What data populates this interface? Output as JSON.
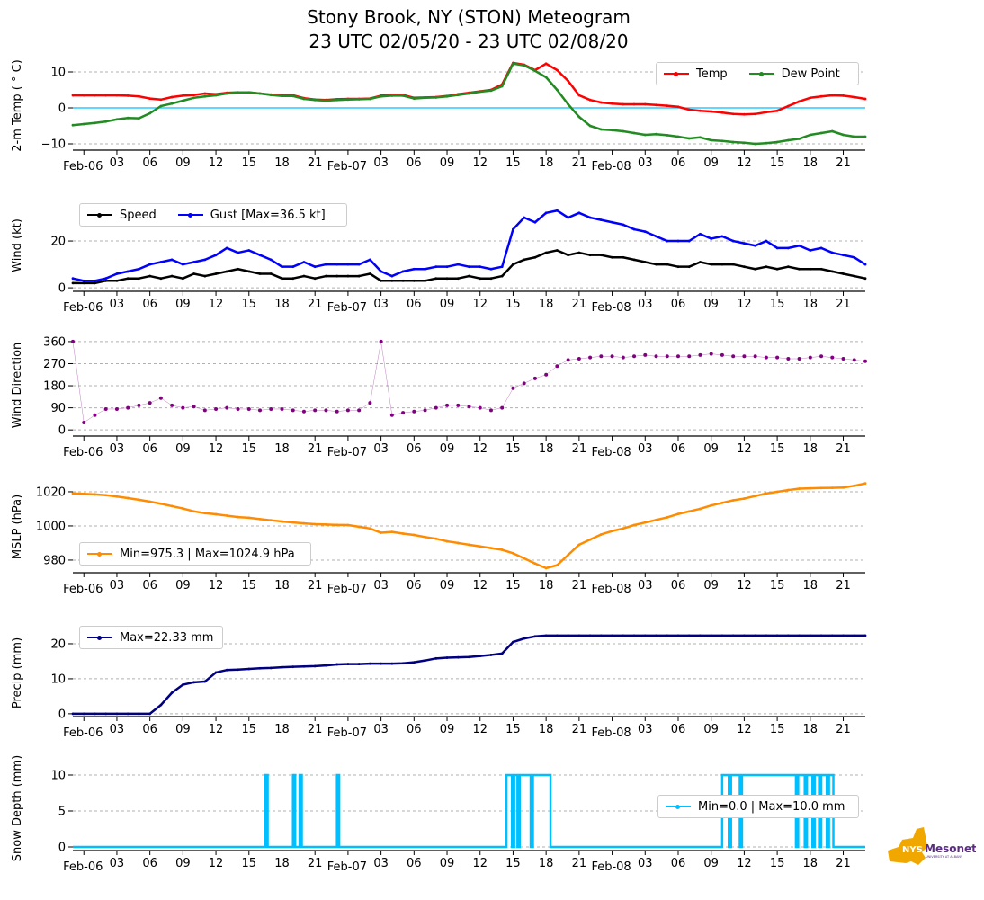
{
  "title": {
    "line1": "Stony Brook, NY (STON) Meteogram",
    "line2": "23 UTC 02/05/20 - 23 UTC 02/08/20"
  },
  "logo": {
    "text": "NYS Mesonet",
    "sub": "UNIVERSITY AT ALBANY"
  },
  "colors": {
    "temp": "#ff0000",
    "dew": "#228b22",
    "speed": "#000000",
    "gust": "#0000ff",
    "dir": "#800080",
    "mslp": "#ff8c00",
    "precip": "#000080",
    "snow": "#00bfff",
    "zero": "#00bfff"
  },
  "chart_data": {
    "type": "line",
    "x_unit": "hours since 23 UTC 02/05/20",
    "xlim": [
      0,
      72
    ],
    "x_ticks": {
      "hours": [
        1,
        4,
        7,
        10,
        13,
        16,
        19,
        22,
        25,
        28,
        31,
        34,
        37,
        40,
        43,
        46,
        49,
        52,
        55,
        58,
        61,
        64,
        67,
        70
      ],
      "labels": [
        "Feb-06",
        "03",
        "06",
        "09",
        "12",
        "15",
        "18",
        "21",
        "Feb-07",
        "03",
        "06",
        "09",
        "12",
        "15",
        "18",
        "21",
        "Feb-08",
        "03",
        "06",
        "09",
        "12",
        "15",
        "18",
        "21"
      ]
    },
    "panels": [
      {
        "ylabel": "2-m Temp ($^\\circ$C)",
        "ylabel_text": "2-m Temp ( ° C)",
        "ylim": [
          -11.75,
          13
        ],
        "yticks": [
          -10,
          0,
          10
        ],
        "ytick_labels": [
          "−10",
          "0",
          "10"
        ],
        "zero_line": true,
        "legend": [
          "Temp",
          "Dew Point"
        ],
        "series": [
          {
            "name": "Temp",
            "color": "#ff0000",
            "values": [
              3.5,
              3.5,
              3.5,
              3.5,
              3.5,
              3.4,
              3.2,
              2.6,
              2.3,
              3.0,
              3.4,
              3.6,
              4.0,
              3.8,
              4.2,
              4.3,
              4.3,
              4.0,
              3.7,
              3.5,
              3.5,
              2.7,
              2.3,
              2.2,
              2.4,
              2.5,
              2.5,
              2.6,
              3.4,
              3.6,
              3.6,
              2.8,
              2.9,
              3.0,
              3.3,
              3.8,
              4.2,
              4.6,
              5.0,
              6.5,
              12.5,
              12.0,
              10.5,
              12.3,
              10.5,
              7.5,
              3.5,
              2.2,
              1.5,
              1.2,
              1.0,
              1.0,
              1.0,
              0.8,
              0.6,
              0.3,
              -0.5,
              -0.8,
              -1.0,
              -1.3,
              -1.7,
              -1.8,
              -1.7,
              -1.2,
              -0.8,
              0.5,
              1.8,
              2.8,
              3.2,
              3.5,
              3.4,
              3.0,
              2.5
            ]
          },
          {
            "name": "Dew Point",
            "color": "#228b22",
            "values": [
              -4.8,
              -4.5,
              -4.2,
              -3.8,
              -3.2,
              -2.8,
              -2.9,
              -1.5,
              0.5,
              1.2,
              2.0,
              2.8,
              3.2,
              3.5,
              4.0,
              4.3,
              4.3,
              4.0,
              3.6,
              3.3,
              3.3,
              2.5,
              2.2,
              2.0,
              2.2,
              2.3,
              2.4,
              2.5,
              3.2,
              3.4,
              3.4,
              2.6,
              2.8,
              2.9,
              3.2,
              3.6,
              4.0,
              4.5,
              4.8,
              6.0,
              12.3,
              11.8,
              10.3,
              8.5,
              5.0,
              1.0,
              -2.5,
              -5.0,
              -6.0,
              -6.2,
              -6.5,
              -7.0,
              -7.5,
              -7.3,
              -7.6,
              -8.0,
              -8.5,
              -8.2,
              -9.0,
              -9.2,
              -9.5,
              -9.7,
              -10.0,
              -9.8,
              -9.5,
              -9.0,
              -8.6,
              -7.5,
              -7.0,
              -6.5,
              -7.5,
              -8.0,
              -8.0
            ]
          }
        ]
      },
      {
        "ylabel_text": "Wind (kt)",
        "ylim": [
          -1.5,
          37.7
        ],
        "yticks": [
          0,
          20
        ],
        "ytick_labels": [
          "0",
          "20"
        ],
        "legend": [
          "Speed",
          "Gust [Max=36.5 kt]"
        ],
        "series": [
          {
            "name": "Speed",
            "color": "#000000",
            "values": [
              2,
              2,
              2,
              3,
              3,
              4,
              4,
              5,
              4,
              5,
              4,
              6,
              5,
              6,
              7,
              8,
              7,
              6,
              6,
              4,
              4,
              5,
              4,
              5,
              5,
              5,
              5,
              6,
              3,
              3,
              3,
              3,
              3,
              4,
              4,
              4,
              5,
              4,
              4,
              5,
              10,
              12,
              13,
              15,
              16,
              14,
              15,
              14,
              14,
              13,
              13,
              12,
              11,
              10,
              10,
              9,
              9,
              11,
              10,
              10,
              10,
              9,
              8,
              9,
              8,
              9,
              8,
              8,
              8,
              7,
              6,
              5,
              4
            ]
          },
          {
            "name": "Gust",
            "color": "#0000ff",
            "values": [
              4,
              3,
              3,
              4,
              6,
              7,
              8,
              10,
              11,
              12,
              10,
              11,
              12,
              14,
              17,
              15,
              16,
              14,
              12,
              9,
              9,
              11,
              9,
              10,
              10,
              10,
              10,
              12,
              7,
              5,
              7,
              8,
              8,
              9,
              9,
              10,
              9,
              9,
              8,
              9,
              25,
              30,
              28,
              32,
              33,
              30,
              32,
              30,
              29,
              28,
              27,
              25,
              24,
              22,
              20,
              20,
              20,
              23,
              21,
              22,
              20,
              19,
              18,
              20,
              17,
              17,
              18,
              16,
              17,
              15,
              14,
              13,
              10
            ]
          }
        ]
      },
      {
        "ylabel_text": "Wind Direction",
        "ylim": [
          -25,
          389
        ],
        "yticks": [
          0,
          90,
          180,
          270,
          360
        ],
        "ytick_labels": [
          "0",
          "90",
          "180",
          "270",
          "360"
        ],
        "scatter": true,
        "series": [
          {
            "name": "Direction",
            "color": "#800080",
            "values": [
              360,
              30,
              60,
              85,
              85,
              90,
              100,
              110,
              130,
              100,
              90,
              95,
              80,
              85,
              90,
              85,
              85,
              80,
              85,
              85,
              80,
              75,
              80,
              80,
              75,
              80,
              80,
              110,
              360,
              60,
              70,
              75,
              80,
              90,
              100,
              100,
              95,
              90,
              80,
              90,
              170,
              190,
              210,
              225,
              260,
              285,
              290,
              295,
              300,
              300,
              295,
              300,
              305,
              300,
              300,
              300,
              300,
              305,
              310,
              305,
              300,
              300,
              300,
              295,
              295,
              290,
              290,
              295,
              300,
              295,
              290,
              285,
              280
            ]
          }
        ]
      },
      {
        "ylabel_text": "MSLP (hPa)",
        "ylim": [
          972.6,
          1026.3
        ],
        "yticks": [
          980,
          1000,
          1020
        ],
        "ytick_labels": [
          "980",
          "1000",
          "1020"
        ],
        "legend": [
          "Min=975.3 | Max=1024.9 hPa"
        ],
        "series": [
          {
            "name": "MSLP",
            "color": "#ff8c00",
            "values": [
              1019,
              1018.8,
              1018.5,
              1018,
              1017.2,
              1016.3,
              1015.3,
              1014.2,
              1013,
              1011.6,
              1010.2,
              1008.5,
              1007.5,
              1006.8,
              1006,
              1005.2,
              1004.8,
              1004,
              1003.3,
              1002.6,
              1002,
              1001.5,
              1001,
              1000.8,
              1000.6,
              1000.5,
              999.5,
              998.5,
              996,
              996.5,
              995.5,
              994.7,
              993.5,
              992.5,
              991,
              990,
              989,
              988,
              987,
              986,
              984,
              981,
              978,
              975.3,
              977,
              983,
              989,
              992,
              995,
              997,
              998.5,
              1000.5,
              1002,
              1003.5,
              1005,
              1007,
              1008.5,
              1010,
              1012,
              1013.5,
              1015,
              1016,
              1017.5,
              1019,
              1020,
              1021,
              1021.8,
              1022,
              1022.2,
              1022.3,
              1022.5,
              1023.5,
              1024.9
            ]
          }
        ]
      },
      {
        "ylabel_text": "Precip (mm)",
        "ylim": [
          -0.8,
          24.1
        ],
        "yticks": [
          0,
          10,
          20
        ],
        "ytick_labels": [
          "0",
          "10",
          "20"
        ],
        "legend": [
          "Max=22.33 mm"
        ],
        "series": [
          {
            "name": "Precip",
            "color": "#000080",
            "values": [
              0,
              0,
              0,
              0,
              0,
              0,
              0,
              0,
              2.5,
              6,
              8.3,
              9,
              9.2,
              11.8,
              12.5,
              12.6,
              12.8,
              13,
              13.1,
              13.3,
              13.4,
              13.5,
              13.6,
              13.8,
              14.1,
              14.2,
              14.2,
              14.3,
              14.3,
              14.3,
              14.4,
              14.7,
              15.2,
              15.8,
              16,
              16.1,
              16.2,
              16.5,
              16.8,
              17.2,
              20.5,
              21.5,
              22.1,
              22.33,
              22.33,
              22.33,
              22.33,
              22.33,
              22.33,
              22.33,
              22.33,
              22.33,
              22.33,
              22.33,
              22.33,
              22.33,
              22.33,
              22.33,
              22.33,
              22.33,
              22.33,
              22.33,
              22.33,
              22.33,
              22.33,
              22.33,
              22.33,
              22.33,
              22.33,
              22.33,
              22.33,
              22.33,
              22.33
            ]
          }
        ]
      },
      {
        "ylabel_text": "Snow Depth (mm)",
        "ylim": [
          -0.5,
          11.25
        ],
        "yticks": [
          0,
          5,
          10
        ],
        "ytick_labels": [
          "0",
          "5",
          "10"
        ],
        "legend": [
          "Min=0.0 | Max=10.0 mm"
        ],
        "step_intervals": {
          "name": "Snow Depth",
          "color": "#00bfff",
          "value": 10,
          "base": 0,
          "intervals": [
            [
              17.5,
              17.7
            ],
            [
              20.0,
              20.2
            ],
            [
              20.6,
              20.8
            ],
            [
              24.0,
              24.2
            ],
            [
              39.4,
              39.9
            ],
            [
              40.1,
              40.4
            ],
            [
              40.6,
              41.6
            ],
            [
              41.8,
              43.4
            ],
            [
              59.0,
              59.6
            ],
            [
              59.8,
              60.6
            ],
            [
              60.8,
              65.7
            ],
            [
              65.9,
              66.5
            ],
            [
              66.7,
              67.2
            ],
            [
              67.4,
              67.8
            ],
            [
              68.0,
              68.5
            ],
            [
              68.7,
              69.1
            ]
          ]
        }
      }
    ]
  }
}
